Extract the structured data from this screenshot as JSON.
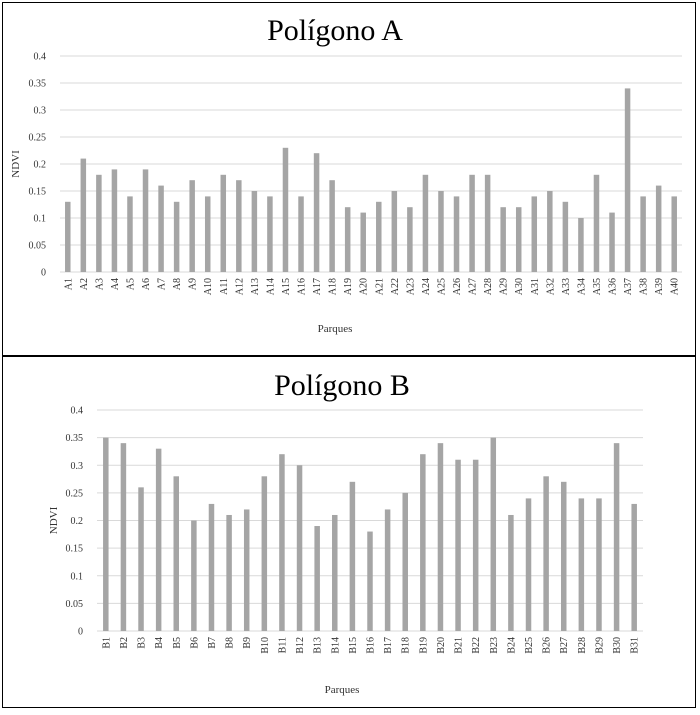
{
  "chart_data": [
    {
      "type": "bar",
      "title": "Polígono A",
      "xlabel": "Parques",
      "ylabel": "NDVI",
      "ylim": [
        0,
        0.4
      ],
      "yticks": [
        "0",
        "0.05",
        "0.1",
        "0.15",
        "0.2",
        "0.25",
        "0.3",
        "0.35",
        "0.4"
      ],
      "grid": true,
      "bar_color": "#a5a5a5",
      "categories": [
        "A1",
        "A2",
        "A3",
        "A4",
        "A5",
        "A6",
        "A7",
        "A8",
        "A9",
        "A10",
        "A11",
        "A12",
        "A13",
        "A14",
        "A15",
        "A16",
        "A17",
        "A18",
        "A19",
        "A20",
        "A21",
        "A22",
        "A23",
        "A24",
        "A25",
        "A26",
        "A27",
        "A28",
        "A29",
        "A30",
        "A31",
        "A32",
        "A33",
        "A34",
        "A35",
        "A36",
        "A37",
        "A38",
        "A39",
        "A40"
      ],
      "values": [
        0.13,
        0.21,
        0.18,
        0.19,
        0.14,
        0.19,
        0.16,
        0.13,
        0.17,
        0.14,
        0.18,
        0.17,
        0.15,
        0.14,
        0.23,
        0.14,
        0.22,
        0.17,
        0.12,
        0.11,
        0.13,
        0.15,
        0.12,
        0.18,
        0.15,
        0.14,
        0.18,
        0.18,
        0.12,
        0.12,
        0.14,
        0.15,
        0.13,
        0.1,
        0.18,
        0.11,
        0.34,
        0.14,
        0.16,
        0.14
      ]
    },
    {
      "type": "bar",
      "title": "Polígono B",
      "xlabel": "Parques",
      "ylabel": "NDVI",
      "ylim": [
        0,
        0.4
      ],
      "yticks": [
        "0",
        "0.05",
        "0.1",
        "0.15",
        "0.2",
        "0.25",
        "0.3",
        "0.35",
        "0.4"
      ],
      "grid": true,
      "bar_color": "#a5a5a5",
      "categories": [
        "B1",
        "B2",
        "B3",
        "B4",
        "B5",
        "B6",
        "B7",
        "B8",
        "B9",
        "B10",
        "B11",
        "B12",
        "B13",
        "B14",
        "B15",
        "B16",
        "B17",
        "B18",
        "B19",
        "B20",
        "B21",
        "B22",
        "B23",
        "B24",
        "B25",
        "B26",
        "B27",
        "B28",
        "B29",
        "B30",
        "B31"
      ],
      "values": [
        0.35,
        0.34,
        0.26,
        0.33,
        0.28,
        0.2,
        0.23,
        0.21,
        0.22,
        0.28,
        0.32,
        0.3,
        0.19,
        0.21,
        0.27,
        0.18,
        0.22,
        0.25,
        0.32,
        0.34,
        0.31,
        0.31,
        0.35,
        0.21,
        0.24,
        0.28,
        0.27,
        0.24,
        0.24,
        0.34,
        0.23
      ]
    }
  ]
}
